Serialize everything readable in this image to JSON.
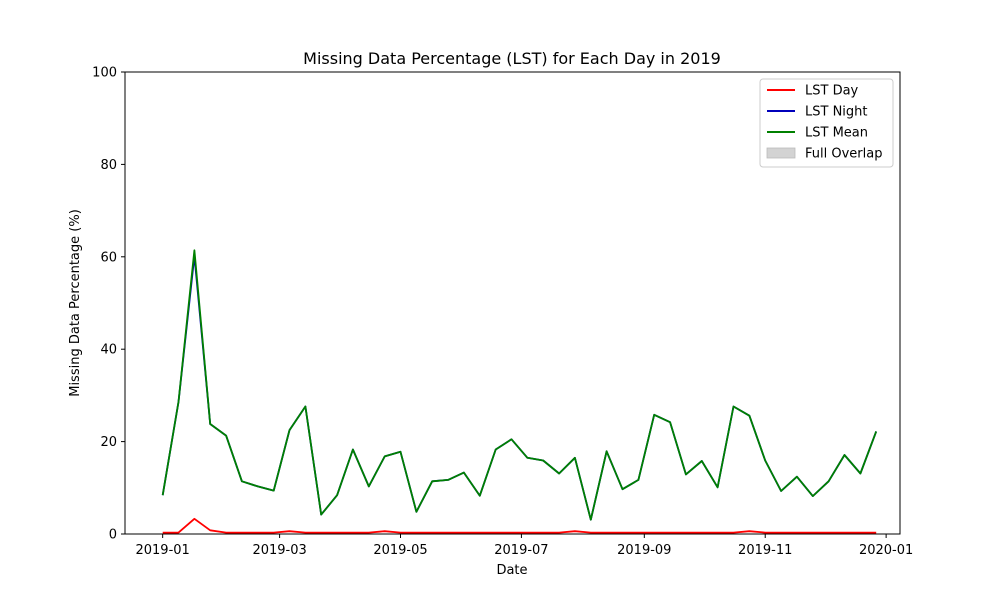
{
  "chart_data": {
    "type": "line",
    "title": "Missing Data Percentage (LST) for Each Day in 2019",
    "xlabel": "Date",
    "ylabel": "Missing Data Percentage (%)",
    "ylim": [
      0,
      100
    ],
    "yticks": [
      0,
      20,
      40,
      60,
      80,
      100
    ],
    "xlim": [
      "2018-12-13",
      "2020-01-08"
    ],
    "xticks": [
      "2019-01",
      "2019-03",
      "2019-05",
      "2019-07",
      "2019-09",
      "2019-11",
      "2020-01"
    ],
    "x": [
      "2019-01-01",
      "2019-01-09",
      "2019-01-17",
      "2019-01-25",
      "2019-02-02",
      "2019-02-10",
      "2019-02-18",
      "2019-02-26",
      "2019-03-06",
      "2019-03-14",
      "2019-03-22",
      "2019-03-30",
      "2019-04-07",
      "2019-04-15",
      "2019-04-23",
      "2019-05-01",
      "2019-05-09",
      "2019-05-17",
      "2019-05-25",
      "2019-06-02",
      "2019-06-10",
      "2019-06-18",
      "2019-06-26",
      "2019-07-04",
      "2019-07-12",
      "2019-07-20",
      "2019-07-28",
      "2019-08-05",
      "2019-08-13",
      "2019-08-21",
      "2019-08-29",
      "2019-09-06",
      "2019-09-14",
      "2019-09-22",
      "2019-09-30",
      "2019-10-08",
      "2019-10-16",
      "2019-10-24",
      "2019-11-01",
      "2019-11-09",
      "2019-11-17",
      "2019-11-25",
      "2019-12-03",
      "2019-12-11",
      "2019-12-19",
      "2019-12-27"
    ],
    "series": [
      {
        "name": "LST Day",
        "color": "#ff0000",
        "values": [
          0.3,
          0.3,
          3.3,
          0.8,
          0.3,
          0.3,
          0.3,
          0.3,
          0.6,
          0.3,
          0.3,
          0.3,
          0.3,
          0.3,
          0.6,
          0.3,
          0.3,
          0.3,
          0.3,
          0.3,
          0.3,
          0.3,
          0.3,
          0.3,
          0.3,
          0.3,
          0.6,
          0.3,
          0.3,
          0.3,
          0.3,
          0.3,
          0.3,
          0.3,
          0.3,
          0.3,
          0.3,
          0.6,
          0.3,
          0.3,
          0.3,
          0.3,
          0.3,
          0.3,
          0.3,
          0.3
        ]
      },
      {
        "name": "LST Night",
        "color": "#0000bb",
        "values": [
          8.4,
          28.6,
          60.2,
          23.8,
          21.3,
          11.4,
          10.3,
          9.4,
          22.5,
          27.6,
          4.2,
          8.4,
          18.3,
          10.3,
          16.8,
          17.8,
          4.8,
          11.4,
          11.7,
          13.3,
          8.3,
          18.3,
          20.5,
          16.5,
          15.9,
          13.1,
          16.5,
          3.1,
          17.9,
          9.7,
          11.7,
          25.8,
          24.2,
          12.9,
          15.8,
          10.1,
          27.6,
          25.6,
          15.9,
          9.3,
          12.4,
          8.2,
          11.4,
          17.1,
          13.1,
          22.2
        ]
      },
      {
        "name": "LST Mean",
        "color": "#008000",
        "values": [
          8.4,
          28.6,
          61.4,
          23.8,
          21.3,
          11.4,
          10.3,
          9.4,
          22.5,
          27.6,
          4.2,
          8.4,
          18.3,
          10.3,
          16.8,
          17.8,
          4.8,
          11.4,
          11.7,
          13.3,
          8.3,
          18.3,
          20.5,
          16.5,
          15.9,
          13.1,
          16.5,
          3.1,
          17.9,
          9.7,
          11.7,
          25.8,
          24.2,
          12.9,
          15.8,
          10.1,
          27.6,
          25.6,
          15.9,
          9.3,
          12.4,
          8.2,
          11.4,
          17.1,
          13.1,
          22.2
        ]
      }
    ],
    "legend": {
      "position": "top-right",
      "entries": [
        {
          "label": "LST Day",
          "kind": "line",
          "color": "#ff0000"
        },
        {
          "label": "LST Night",
          "kind": "line",
          "color": "#0000bb"
        },
        {
          "label": "LST Mean",
          "kind": "line",
          "color": "#008000"
        },
        {
          "label": "Full Overlap",
          "kind": "patch",
          "color": "#d3d3d3"
        }
      ]
    },
    "grid": false
  }
}
